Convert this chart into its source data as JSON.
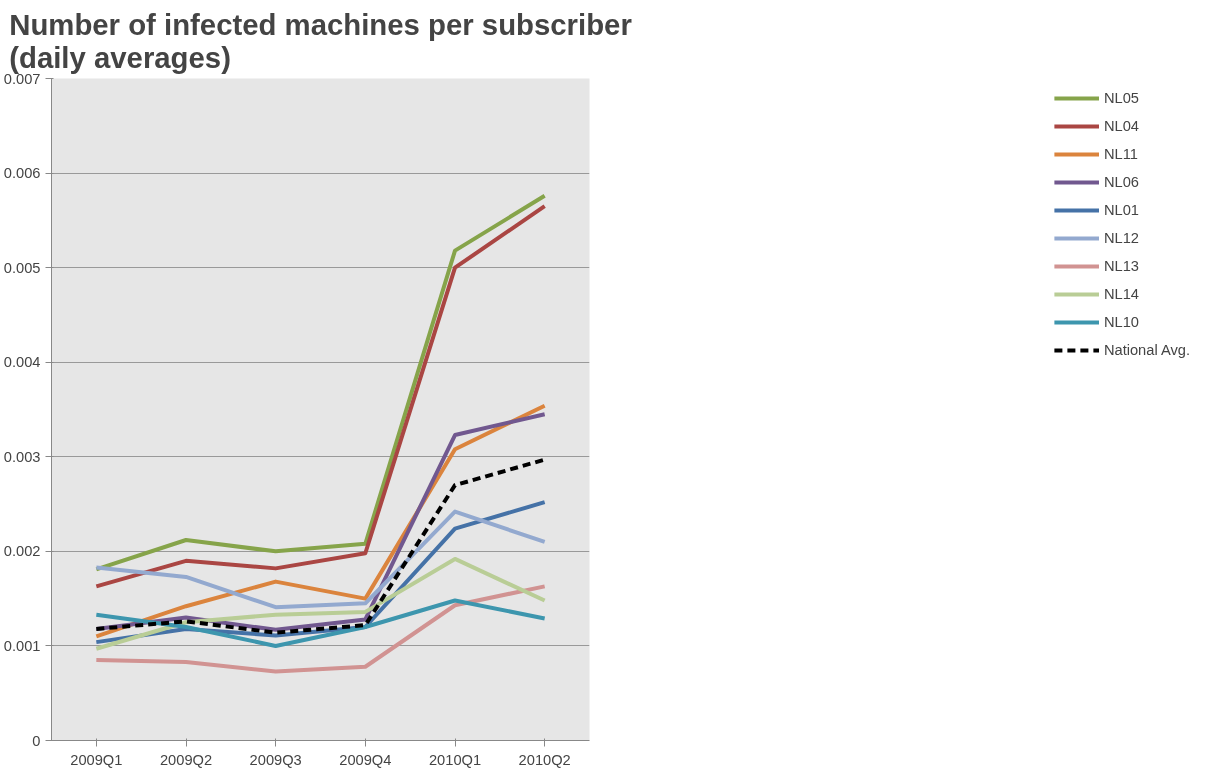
{
  "chart_data": {
    "type": "line",
    "title": "Number of infected machines per subscriber\n(daily averages)",
    "categories": [
      "2009Q1",
      "2009Q2",
      "2009Q3",
      "2009Q4",
      "2010Q1",
      "2010Q2"
    ],
    "ylim": [
      0,
      0.007
    ],
    "yticks": [
      0,
      0.001,
      0.002,
      0.003,
      0.004,
      0.005,
      0.006,
      0.007
    ],
    "grid": "y",
    "legend": "right",
    "marker": "none",
    "line_style": "solid",
    "series": [
      {
        "name": "NL05",
        "color": "#86a44a",
        "values": [
          0.00181,
          0.00212,
          0.002,
          0.00208,
          0.00518,
          0.00576
        ]
      },
      {
        "name": "NL04",
        "color": "#aa4643",
        "values": [
          0.00163,
          0.0019,
          0.00182,
          0.00198,
          0.005,
          0.00565
        ]
      },
      {
        "name": "NL11",
        "color": "#db843d",
        "values": [
          0.0011,
          0.00142,
          0.00168,
          0.0015,
          0.00308,
          0.00354
        ]
      },
      {
        "name": "NL06",
        "color": "#71588f",
        "values": [
          0.00118,
          0.0013,
          0.00117,
          0.00128,
          0.00323,
          0.00345
        ]
      },
      {
        "name": "NL01",
        "color": "#4572a7",
        "values": [
          0.00104,
          0.00118,
          0.00111,
          0.0012,
          0.00224,
          0.00252
        ]
      },
      {
        "name": "NL12",
        "color": "#93a9cf",
        "values": [
          0.00183,
          0.00173,
          0.00141,
          0.00145,
          0.00242,
          0.0021
        ]
      },
      {
        "name": "NL13",
        "color": "#d19392",
        "values": [
          0.00085,
          0.00083,
          0.00073,
          0.00078,
          0.00143,
          0.00163
        ]
      },
      {
        "name": "NL14",
        "color": "#b9cd96",
        "values": [
          0.00097,
          0.00125,
          0.00133,
          0.00136,
          0.00192,
          0.00148
        ]
      },
      {
        "name": "NL10",
        "color": "#3d96ae",
        "values": [
          0.00133,
          0.0012,
          0.001,
          0.0012,
          0.00148,
          0.00129
        ]
      },
      {
        "name": "National Avg.",
        "color": "#000000",
        "line_style": "dashed",
        "values": [
          0.00118,
          0.00126,
          0.00114,
          0.00122,
          0.0027,
          0.00297
        ]
      }
    ]
  }
}
